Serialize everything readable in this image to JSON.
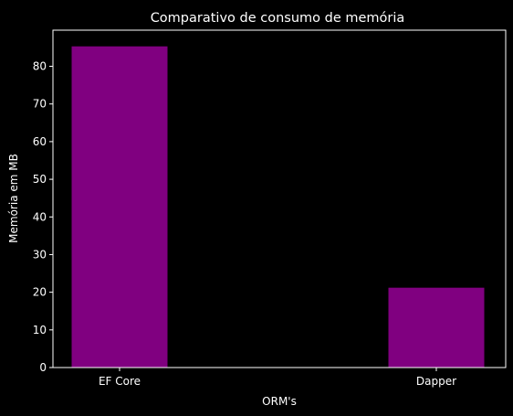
{
  "chart_data": {
    "type": "bar",
    "title": "Comparativo de consumo de memória",
    "xlabel": "ORM's",
    "ylabel": "Memória em MB",
    "categories": [
      "EF Core",
      "Dapper"
    ],
    "values": [
      85.3,
      21.2
    ],
    "ylim": [
      0,
      89.6
    ],
    "yticks": [
      0,
      10,
      20,
      30,
      40,
      50,
      60,
      70,
      80
    ],
    "grid": false,
    "bar_color": "#800080",
    "background": "#000000",
    "text_color": "#ffffff"
  }
}
